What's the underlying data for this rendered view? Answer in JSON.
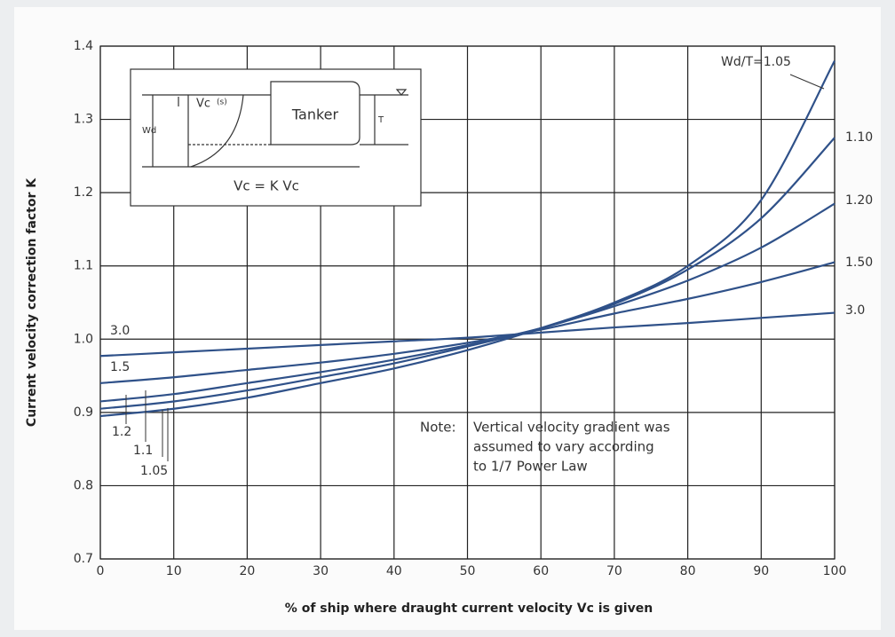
{
  "chart_data": {
    "type": "line",
    "y_label": "Current velocity correction factor K",
    "x_label": "% of ship where draught current velocity Vc is given",
    "x": [
      0,
      10,
      20,
      30,
      40,
      50,
      60,
      70,
      80,
      90,
      100
    ],
    "series": [
      {
        "name": "Wd/T=1.05",
        "color": "#2f5189",
        "values": [
          0.895,
          0.905,
          0.92,
          0.94,
          0.96,
          0.985,
          1.015,
          1.05,
          1.1,
          1.19,
          1.38
        ]
      },
      {
        "name": "1.10",
        "color": "#2f5189",
        "values": [
          0.905,
          0.915,
          0.93,
          0.948,
          0.967,
          0.99,
          1.015,
          1.048,
          1.095,
          1.165,
          1.275
        ]
      },
      {
        "name": "1.20",
        "color": "#2f5189",
        "values": [
          0.915,
          0.925,
          0.94,
          0.955,
          0.972,
          0.992,
          1.015,
          1.045,
          1.08,
          1.125,
          1.185
        ]
      },
      {
        "name": "1.50",
        "color": "#2f5189",
        "values": [
          0.94,
          0.948,
          0.958,
          0.968,
          0.98,
          0.995,
          1.013,
          1.035,
          1.055,
          1.078,
          1.105
        ]
      },
      {
        "name": "3.0",
        "color": "#2f5189",
        "values": [
          0.977,
          0.982,
          0.987,
          0.992,
          0.997,
          1.002,
          1.009,
          1.016,
          1.022,
          1.029,
          1.036
        ]
      }
    ],
    "left_labels": [
      "3.0",
      "1.5",
      "1.2",
      "1.1",
      "1.05"
    ],
    "note": [
      "Note:",
      "Vertical velocity gradient was",
      "assumed to vary according",
      "to 1/7 Power Law"
    ],
    "inset": {
      "velocity": "Vc",
      "surface": "(s)",
      "ship": "Tanker",
      "depth": "Wd",
      "draught": "T",
      "formula": "Vc = K Vc"
    },
    "xlim": [
      0,
      100
    ],
    "xticks": [
      0,
      10,
      20,
      30,
      40,
      50,
      60,
      70,
      80,
      90,
      100
    ],
    "ylim": [
      0.7,
      1.4
    ],
    "yticks": [
      0.7,
      0.8,
      0.9,
      {
        "value": 1,
        "label": "1.0"
      },
      1.1,
      1.2,
      1.3,
      1.4
    ],
    "grid": true
  }
}
